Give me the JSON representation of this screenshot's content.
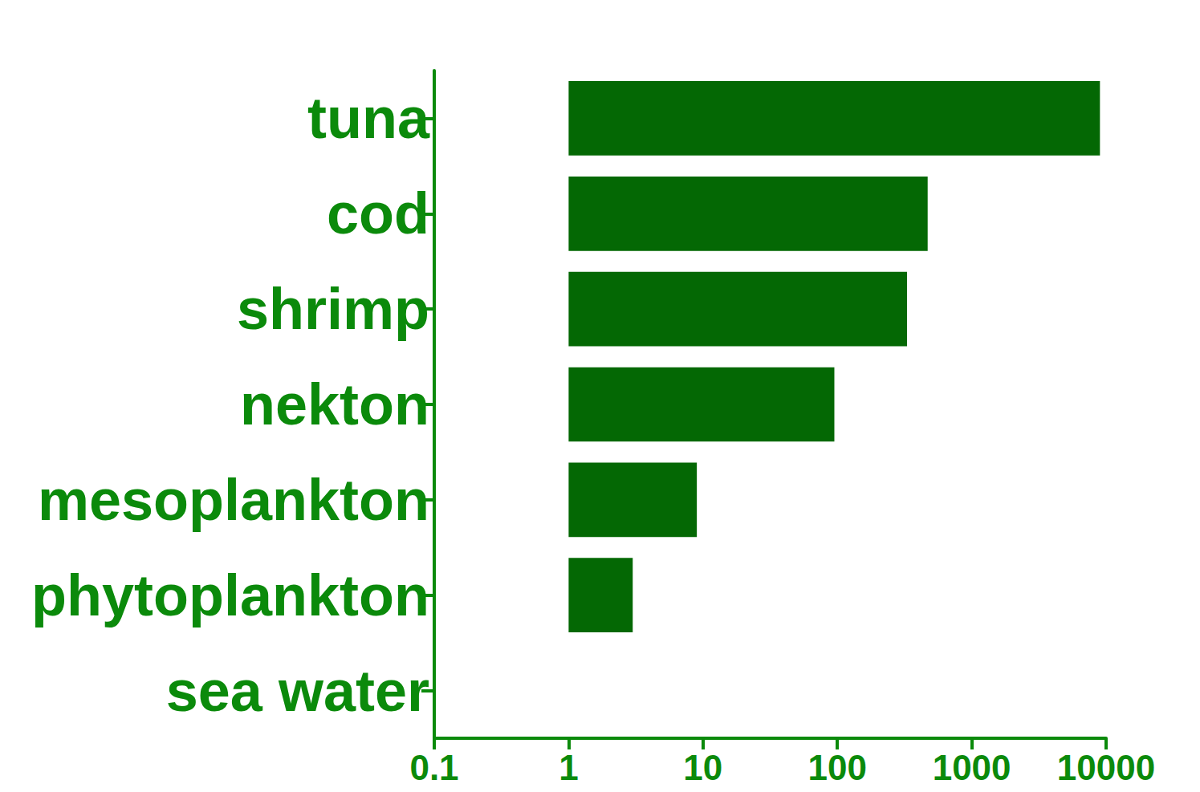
{
  "chart_data": {
    "type": "bar",
    "orientation": "horizontal",
    "log": "x",
    "categories": [
      "tuna",
      "cod",
      "shrimp",
      "nekton",
      "mesoplankton",
      "phytoplankton",
      "sea water"
    ],
    "values": [
      9000,
      470,
      330,
      95,
      9,
      3,
      1
    ],
    "color": "#046804",
    "xlim": [
      0.1,
      10000
    ],
    "xticks": [
      0.1,
      1,
      10,
      100,
      1000,
      10000
    ],
    "grid": false
  }
}
